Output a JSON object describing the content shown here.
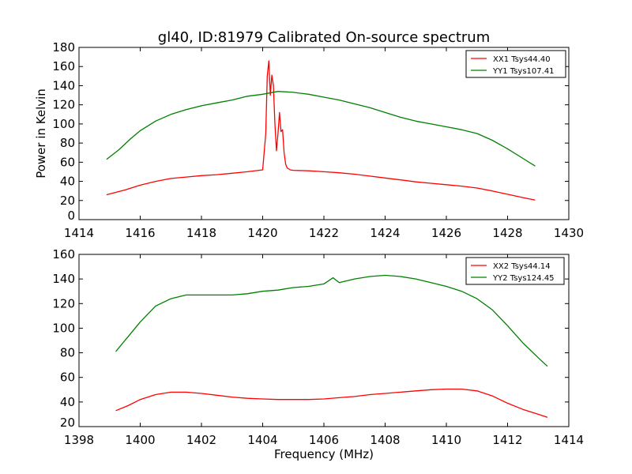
{
  "chart_data": [
    {
      "type": "line",
      "title": "gl40, ID:81979 Calibrated On-source spectrum",
      "xlabel": "",
      "ylabel": "Power in Kelvin",
      "xlim": [
        1414,
        1430
      ],
      "ylim": [
        0,
        180
      ],
      "xticks": [
        "1414",
        "1416",
        "1418",
        "1420",
        "1422",
        "1424",
        "1426",
        "1428",
        "1430"
      ],
      "yticks": [
        "0",
        "20",
        "40",
        "60",
        "80",
        "100",
        "120",
        "140",
        "160",
        "180"
      ],
      "grid": false,
      "legend_position": "top-right",
      "series": [
        {
          "name": "XX1 Tsys44.40",
          "color": "#ff0000",
          "x": [
            1414.9,
            1415.5,
            1416.0,
            1416.5,
            1417.0,
            1417.5,
            1418.0,
            1418.5,
            1419.0,
            1419.5,
            1420.0,
            1420.1,
            1420.15,
            1420.2,
            1420.25,
            1420.3,
            1420.35,
            1420.4,
            1420.45,
            1420.5,
            1420.55,
            1420.6,
            1420.65,
            1420.7,
            1420.75,
            1420.8,
            1420.9,
            1421.0,
            1421.5,
            1422.0,
            1422.5,
            1423.0,
            1423.5,
            1424.0,
            1424.5,
            1425.0,
            1425.5,
            1426.0,
            1426.5,
            1427.0,
            1427.5,
            1428.0,
            1428.5,
            1428.9
          ],
          "y": [
            26,
            31,
            36,
            40,
            43,
            44.5,
            46,
            47,
            48.5,
            50,
            52,
            90,
            150,
            166,
            130,
            151,
            140,
            100,
            72,
            90,
            112,
            92,
            94,
            70,
            58,
            54,
            52,
            51.5,
            51,
            50,
            49,
            47.5,
            45.5,
            43.5,
            41.5,
            39.5,
            38,
            36.5,
            35,
            33,
            30,
            26.5,
            23,
            20.5
          ]
        },
        {
          "name": "YY1 Tsys107.41",
          "color": "#008000",
          "x": [
            1414.9,
            1415.3,
            1415.7,
            1416.0,
            1416.5,
            1417.0,
            1417.5,
            1418.0,
            1418.5,
            1419.0,
            1419.5,
            1420.0,
            1420.5,
            1421.0,
            1421.5,
            1422.0,
            1422.5,
            1423.0,
            1423.5,
            1424.0,
            1424.5,
            1425.0,
            1425.5,
            1426.0,
            1426.5,
            1427.0,
            1427.5,
            1428.0,
            1428.5,
            1428.9
          ],
          "y": [
            63,
            73,
            85,
            93,
            103,
            110,
            115,
            119,
            122,
            125,
            129,
            131,
            134,
            133,
            131,
            128,
            125,
            121,
            117,
            112,
            107,
            103,
            100,
            97,
            94,
            90,
            83,
            74,
            64,
            56
          ]
        }
      ]
    },
    {
      "type": "line",
      "title": "",
      "xlabel": "Frequency (MHz)",
      "ylabel": "",
      "xlim": [
        1398,
        1414
      ],
      "ylim": [
        20,
        160
      ],
      "xticks": [
        "1398",
        "1400",
        "1402",
        "1404",
        "1406",
        "1408",
        "1410",
        "1412",
        "1414"
      ],
      "yticks": [
        "20",
        "40",
        "60",
        "80",
        "100",
        "120",
        "140",
        "160"
      ],
      "grid": false,
      "legend_position": "top-right",
      "series": [
        {
          "name": "XX2 Tsys44.14",
          "color": "#ff0000",
          "x": [
            1399.2,
            1399.6,
            1400.0,
            1400.5,
            1401.0,
            1401.5,
            1402.0,
            1402.5,
            1403.0,
            1403.5,
            1404.0,
            1404.5,
            1405.0,
            1405.5,
            1406.0,
            1406.5,
            1407.0,
            1407.5,
            1408.0,
            1408.5,
            1409.0,
            1409.5,
            1410.0,
            1410.5,
            1411.0,
            1411.5,
            1412.0,
            1412.5,
            1413.0,
            1413.3
          ],
          "y": [
            33,
            37,
            42,
            46,
            48,
            48,
            47,
            45.5,
            44,
            43,
            42.5,
            42,
            42,
            42,
            42.5,
            43.5,
            44.5,
            46,
            47,
            48,
            49,
            50,
            50.5,
            50.5,
            49,
            45,
            39,
            34,
            30,
            27.5
          ]
        },
        {
          "name": "YY2 Tsys124.45",
          "color": "#008000",
          "x": [
            1399.2,
            1399.6,
            1400.0,
            1400.5,
            1401.0,
            1401.5,
            1402.0,
            1402.5,
            1403.0,
            1403.5,
            1404.0,
            1404.5,
            1405.0,
            1405.5,
            1406.0,
            1406.3,
            1406.5,
            1407.0,
            1407.5,
            1408.0,
            1408.5,
            1409.0,
            1409.5,
            1410.0,
            1410.5,
            1411.0,
            1411.5,
            1412.0,
            1412.5,
            1413.0,
            1413.3
          ],
          "y": [
            81,
            93,
            105,
            118,
            124,
            127,
            127,
            127,
            127,
            128,
            130,
            131,
            133,
            134,
            136,
            141,
            137,
            140,
            142,
            143,
            142,
            140,
            137,
            134,
            130,
            124,
            115,
            102,
            88,
            76,
            69
          ]
        }
      ]
    }
  ]
}
